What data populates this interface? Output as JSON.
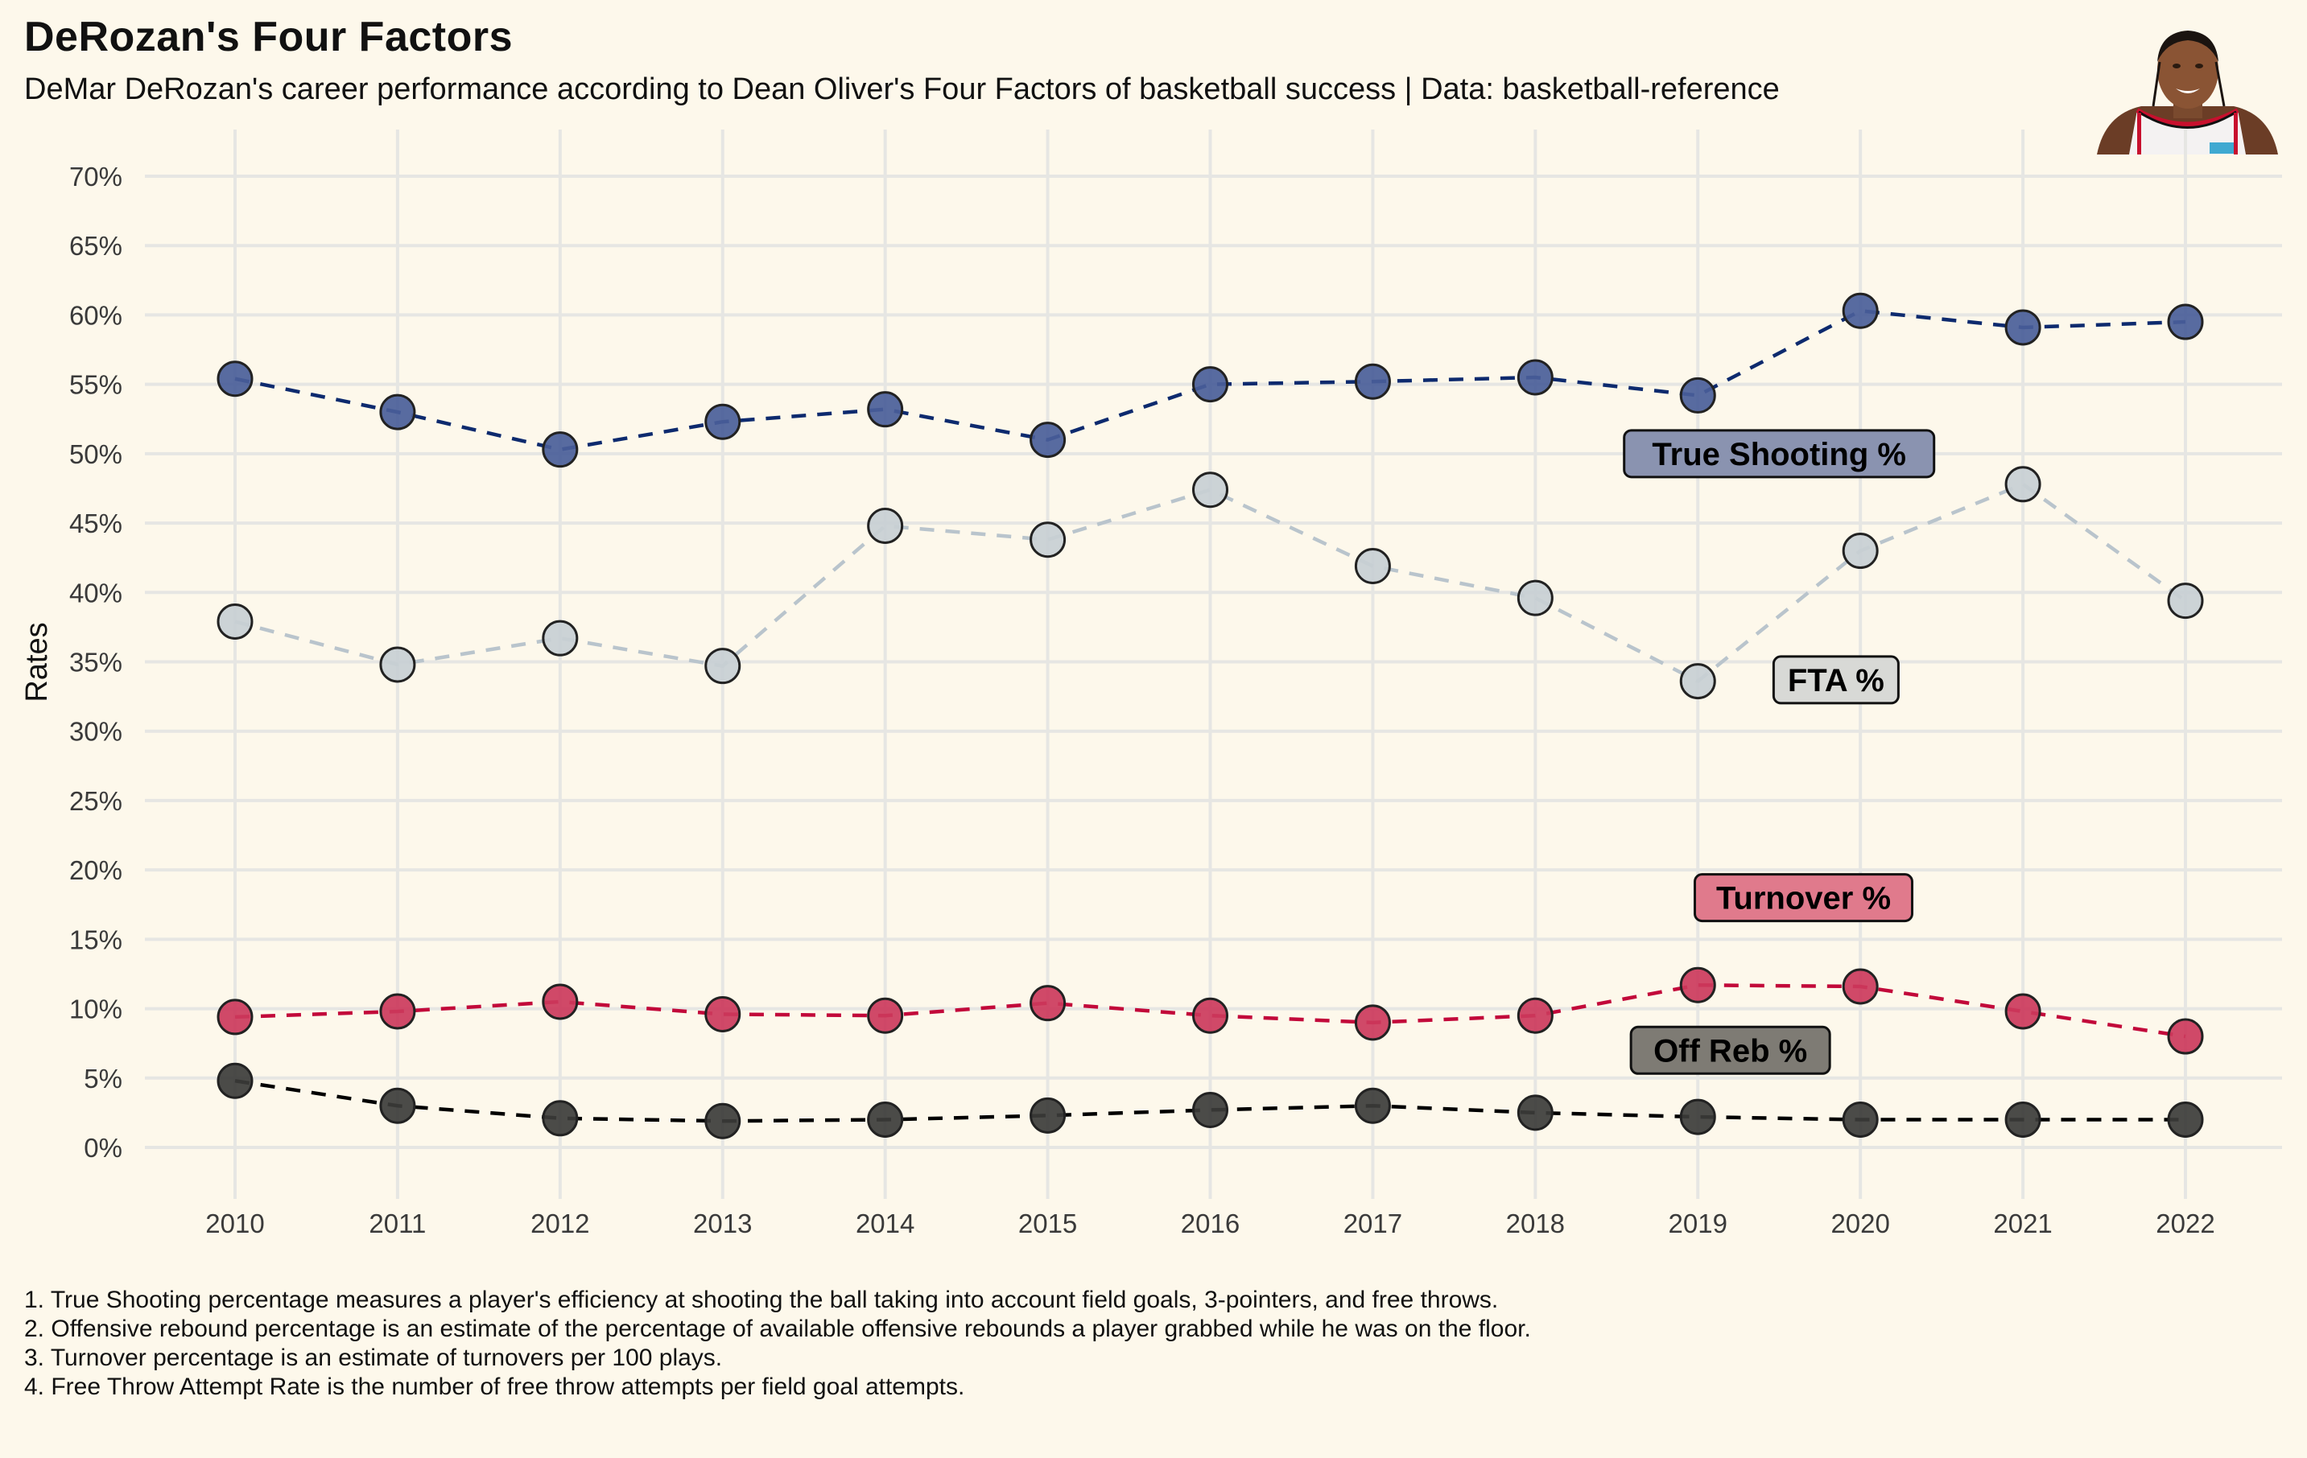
{
  "header": {
    "title": "DeRozan's Four Factors",
    "subtitle": "DeMar DeRozan's career performance according to Dean Oliver's Four Factors of basketball success | Data: basketball-reference",
    "image_alt": "DeMar DeRozan headshot"
  },
  "footnotes": [
    "1. True Shooting percentage measures a player's efficiency at shooting the ball taking into account field goals, 3-pointers, and free throws.",
    "2. Offensive rebound percentage is an estimate of the percentage of available offensive rebounds a player grabbed while he was on the floor.",
    "3. Turnover percentage is an estimate of turnovers per 100 plays.",
    "4. Free Throw Attempt Rate is the number of free throw attempts per field goal attempts."
  ],
  "chart_data": {
    "type": "line",
    "title": "DeRozan's Four Factors",
    "xlabel": "",
    "ylabel": "Rates",
    "x": [
      2010,
      2011,
      2012,
      2013,
      2014,
      2015,
      2016,
      2017,
      2018,
      2019,
      2020,
      2021,
      2022
    ],
    "x_tick_labels": [
      "2010",
      "2011",
      "2012",
      "2013",
      "2014",
      "2015",
      "2016",
      "2017",
      "2018",
      "2019",
      "2020",
      "2021",
      "2022"
    ],
    "ylim": [
      0,
      70
    ],
    "y_ticks": [
      0,
      5,
      10,
      15,
      20,
      25,
      30,
      35,
      40,
      45,
      50,
      55,
      60,
      65,
      70
    ],
    "y_tick_labels": [
      "0%",
      "5%",
      "10%",
      "15%",
      "20%",
      "25%",
      "30%",
      "35%",
      "40%",
      "45%",
      "50%",
      "55%",
      "60%",
      "65%",
      "70%"
    ],
    "grid": true,
    "legend": "direct labels",
    "series": [
      {
        "name": "True Shooting %",
        "line_color": "#0d2a6e",
        "point_color": "#4a5e99",
        "label_bg": "#8a93b0",
        "label_anchor": {
          "x": 2019.5,
          "y": 50.0
        },
        "values": [
          55.4,
          53.0,
          50.3,
          52.3,
          53.2,
          51.0,
          55.0,
          55.2,
          55.5,
          54.2,
          60.3,
          59.1,
          59.5
        ]
      },
      {
        "name": "FTA %",
        "line_color": "#b9c4cc",
        "point_color": "#c8cfd4",
        "label_bg": "#d8d9d6",
        "label_anchor": {
          "x": 2019.85,
          "y": 33.7
        },
        "values": [
          37.9,
          34.8,
          36.7,
          34.7,
          44.8,
          43.8,
          47.4,
          41.9,
          39.6,
          33.6,
          43.0,
          47.8,
          39.4
        ]
      },
      {
        "name": "Turnover %",
        "line_color": "#c2093a",
        "point_color": "#cc3a5c",
        "label_bg": "#e07a8c",
        "label_anchor": {
          "x": 2019.65,
          "y": 18.0
        },
        "values": [
          9.4,
          9.8,
          10.5,
          9.6,
          9.5,
          10.4,
          9.5,
          9.0,
          9.5,
          11.7,
          11.6,
          9.8,
          8.0
        ]
      },
      {
        "name": "Off Reb %",
        "line_color": "#000000",
        "point_color": "#3c3c3a",
        "label_bg": "#7e7b74",
        "label_anchor": {
          "x": 2019.2,
          "y": 7.0
        },
        "values": [
          4.8,
          3.0,
          2.1,
          1.9,
          2.0,
          2.3,
          2.7,
          3.0,
          2.5,
          2.2,
          2.0,
          2.0,
          2.0
        ]
      }
    ]
  }
}
